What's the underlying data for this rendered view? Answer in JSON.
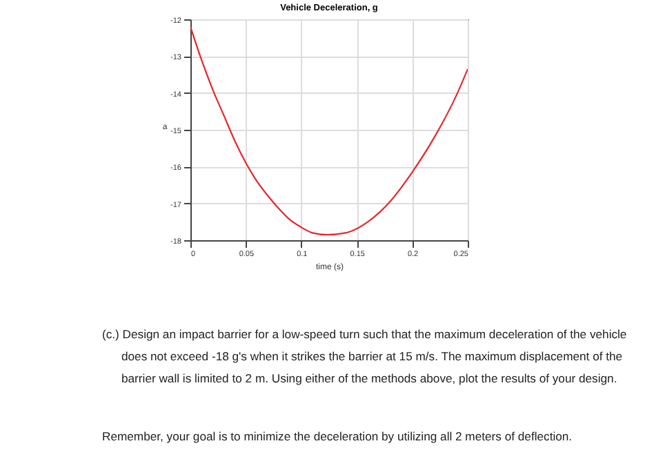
{
  "chart_data": {
    "type": "line",
    "title": "Vehicle Deceleration, g",
    "xlabel": "time (s)",
    "ylabel": "a",
    "x": [
      0,
      0.01,
      0.02,
      0.03,
      0.04,
      0.05,
      0.06,
      0.07,
      0.08,
      0.09,
      0.1,
      0.11,
      0.123,
      0.14,
      0.16,
      0.18,
      0.2,
      0.22,
      0.24,
      0.25
    ],
    "series": [
      {
        "color": "#e8262b",
        "values": [
          -12.2,
          -13.1,
          -13.9,
          -14.6,
          -15.3,
          -15.9,
          -16.4,
          -16.8,
          -17.15,
          -17.45,
          -17.65,
          -17.8,
          -17.85,
          -17.8,
          -17.5,
          -16.95,
          -16.15,
          -15.2,
          -14.05,
          -13.35
        ]
      }
    ],
    "xlim": [
      0,
      0.25
    ],
    "xticks": [
      0,
      0.05,
      0.1,
      0.15,
      0.2,
      0.25
    ],
    "ylim": [
      -18,
      -12
    ],
    "yticks": [
      -18,
      -17,
      -16,
      -15,
      -14,
      -13,
      -12
    ],
    "grid": true,
    "marker": "none",
    "line_style": "solid",
    "annotations": [
      "(c.) Design an impact barrier for a low-speed turn such that the maximum deceleration of the vehicle does not exceed -18 g's when it strikes the barrier at 15 m/s.  The maximum displacement of the barrier wall is limited to 2 m.  Using either of the methods above, plot the results of your design.",
      "Remember, your goal is to minimize the deceleration by utilizing all 2 meters of deflection."
    ]
  }
}
